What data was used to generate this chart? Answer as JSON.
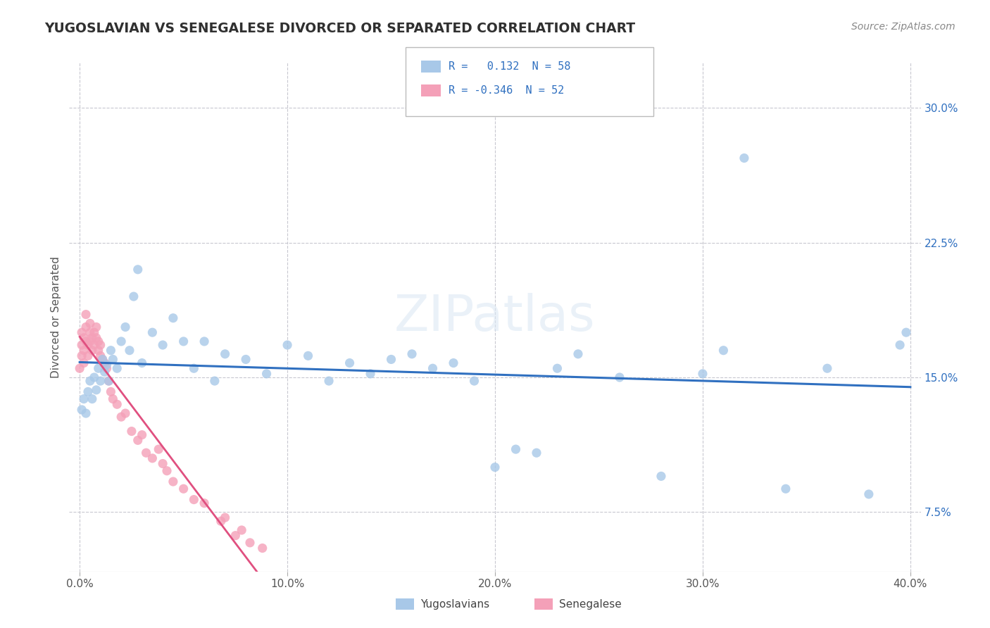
{
  "title": "YUGOSLAVIAN VS SENEGALESE DIVORCED OR SEPARATED CORRELATION CHART",
  "source": "Source: ZipAtlas.com",
  "xlabel_vals": [
    0.0,
    0.1,
    0.2,
    0.3,
    0.4
  ],
  "ylabel_vals": [
    0.075,
    0.15,
    0.225,
    0.3
  ],
  "ylabel_ticks": [
    "7.5%",
    "15.0%",
    "22.5%",
    "30.0%"
  ],
  "xlim": [
    -0.005,
    0.405
  ],
  "ylim": [
    0.042,
    0.325
  ],
  "watermark": "ZIPatlas",
  "r_yug": 0.132,
  "n_yug": 58,
  "r_sen": -0.346,
  "n_sen": 52,
  "color_yug": "#a8c8e8",
  "color_sen": "#f4a0b8",
  "line_color_yug": "#3070c0",
  "line_color_sen": "#e05080",
  "background": "#ffffff",
  "grid_color": "#c8c8d0",
  "ylabel": "Divorced or Separated",
  "title_color": "#303030",
  "yug_x": [
    0.001,
    0.002,
    0.003,
    0.004,
    0.005,
    0.006,
    0.007,
    0.008,
    0.009,
    0.01,
    0.011,
    0.012,
    0.013,
    0.014,
    0.015,
    0.016,
    0.018,
    0.02,
    0.022,
    0.024,
    0.026,
    0.028,
    0.03,
    0.035,
    0.04,
    0.045,
    0.05,
    0.055,
    0.06,
    0.065,
    0.07,
    0.08,
    0.09,
    0.1,
    0.11,
    0.12,
    0.13,
    0.14,
    0.15,
    0.16,
    0.17,
    0.18,
    0.19,
    0.2,
    0.21,
    0.22,
    0.23,
    0.24,
    0.26,
    0.28,
    0.3,
    0.31,
    0.32,
    0.34,
    0.36,
    0.38,
    0.395,
    0.398
  ],
  "yug_y": [
    0.132,
    0.138,
    0.13,
    0.142,
    0.148,
    0.138,
    0.15,
    0.143,
    0.155,
    0.148,
    0.16,
    0.153,
    0.157,
    0.148,
    0.165,
    0.16,
    0.155,
    0.17,
    0.178,
    0.165,
    0.195,
    0.21,
    0.158,
    0.175,
    0.168,
    0.183,
    0.17,
    0.155,
    0.17,
    0.148,
    0.163,
    0.16,
    0.152,
    0.168,
    0.162,
    0.148,
    0.158,
    0.152,
    0.16,
    0.163,
    0.155,
    0.158,
    0.148,
    0.1,
    0.11,
    0.108,
    0.155,
    0.163,
    0.15,
    0.095,
    0.152,
    0.165,
    0.272,
    0.088,
    0.155,
    0.085,
    0.168,
    0.175
  ],
  "sen_x": [
    0.0,
    0.001,
    0.001,
    0.001,
    0.002,
    0.002,
    0.002,
    0.003,
    0.003,
    0.003,
    0.004,
    0.004,
    0.005,
    0.005,
    0.005,
    0.006,
    0.006,
    0.007,
    0.007,
    0.008,
    0.008,
    0.009,
    0.009,
    0.01,
    0.01,
    0.011,
    0.012,
    0.013,
    0.014,
    0.015,
    0.016,
    0.018,
    0.02,
    0.022,
    0.025,
    0.028,
    0.03,
    0.032,
    0.035,
    0.038,
    0.04,
    0.042,
    0.045,
    0.05,
    0.055,
    0.06,
    0.068,
    0.07,
    0.075,
    0.078,
    0.082,
    0.088
  ],
  "sen_y": [
    0.155,
    0.162,
    0.168,
    0.175,
    0.158,
    0.165,
    0.172,
    0.17,
    0.178,
    0.185,
    0.162,
    0.168,
    0.175,
    0.17,
    0.18,
    0.165,
    0.172,
    0.168,
    0.175,
    0.172,
    0.178,
    0.165,
    0.17,
    0.162,
    0.168,
    0.16,
    0.158,
    0.155,
    0.148,
    0.142,
    0.138,
    0.135,
    0.128,
    0.13,
    0.12,
    0.115,
    0.118,
    0.108,
    0.105,
    0.11,
    0.102,
    0.098,
    0.092,
    0.088,
    0.082,
    0.08,
    0.07,
    0.072,
    0.062,
    0.065,
    0.058,
    0.055
  ]
}
